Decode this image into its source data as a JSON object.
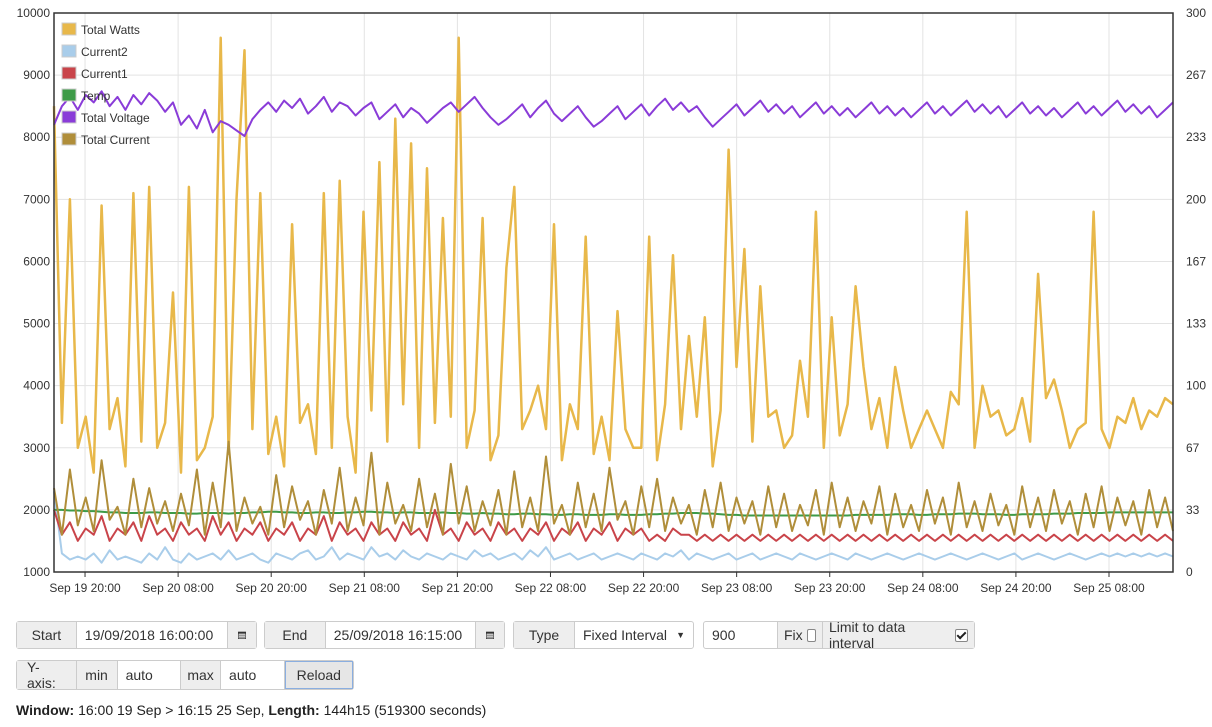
{
  "chart_data": {
    "type": "line",
    "left_axis": {
      "min": 1000,
      "max": 10000,
      "ticks": [
        "10000",
        "9000",
        "8000",
        "7000",
        "6000",
        "5000",
        "4000",
        "3000",
        "2000",
        "1000"
      ]
    },
    "right_axis": {
      "min": 0,
      "max": 300,
      "ticks": [
        "300",
        "267",
        "233",
        "200",
        "167",
        "133",
        "100",
        "67",
        "33",
        "0"
      ]
    },
    "x_ticks": [
      "Sep 19 20:00",
      "Sep 20 08:00",
      "Sep 20 20:00",
      "Sep 21 08:00",
      "Sep 21 20:00",
      "Sep 22 08:00",
      "Sep 22 20:00",
      "Sep 23 08:00",
      "Sep 23 20:00",
      "Sep 24 08:00",
      "Sep 24 20:00",
      "Sep 25 08:00"
    ],
    "x_start": "2018-09-19T16:00",
    "x_end": "2018-09-25T16:15",
    "grid": true,
    "legend_position": "top-left",
    "series": [
      {
        "name": "Total Watts",
        "color": "#e8b84a",
        "axis": "left",
        "values": [
          8500,
          3400,
          7000,
          3000,
          3500,
          2600,
          6900,
          3300,
          3800,
          2700,
          7100,
          3100,
          7200,
          3000,
          3400,
          5500,
          2600,
          7200,
          2800,
          3000,
          3500,
          9600,
          2900,
          7000,
          9400,
          3300,
          7100,
          2900,
          3500,
          2700,
          6600,
          3400,
          3700,
          2900,
          7100,
          3000,
          7300,
          3500,
          2600,
          6800,
          3600,
          7600,
          3100,
          8300,
          3700,
          7900,
          3000,
          7500,
          3400,
          6700,
          3500,
          9600,
          3000,
          3600,
          6700,
          2800,
          3200,
          5900,
          7200,
          3300,
          3600,
          4000,
          3300,
          6600,
          2800,
          3700,
          3300,
          6400,
          2900,
          3500,
          2800,
          5200,
          3300,
          3000,
          3000,
          6400,
          2800,
          3700,
          6100,
          3300,
          4800,
          3500,
          5100,
          2700,
          3600,
          7800,
          4300,
          6200,
          3100,
          5600,
          3500,
          3600,
          3000,
          3200,
          4400,
          3500,
          6800,
          3000,
          5100,
          3200,
          3700,
          5600,
          4300,
          3300,
          3800,
          3000,
          4300,
          3600,
          3000,
          3300,
          3600,
          3300,
          3000,
          3900,
          3700,
          6800,
          3000,
          4000,
          3500,
          3600,
          3200,
          3300,
          3800,
          3100,
          5800,
          3800,
          4100,
          3600,
          3000,
          3300,
          3400,
          6800,
          3300,
          3000,
          3500,
          3400,
          3800,
          3300,
          3600,
          3500,
          3800,
          3700
        ]
      },
      {
        "name": "Current2",
        "color": "#a9cdea",
        "axis": "left",
        "values": [
          2300,
          1300,
          1200,
          1250,
          1200,
          1300,
          1150,
          1350,
          1200,
          1250,
          1200,
          1150,
          1300,
          1200,
          1400,
          1200,
          1150,
          1300,
          1200,
          1250,
          1300,
          1200,
          1350,
          1200,
          1250,
          1300,
          1200,
          1150,
          1300,
          1250,
          1200,
          1300,
          1350,
          1200,
          1250,
          1400,
          1200,
          1300,
          1250,
          1200,
          1400,
          1250,
          1300,
          1200,
          1350,
          1250,
          1200,
          1300,
          1250,
          1200,
          1300,
          1250,
          1200,
          1350,
          1250,
          1300,
          1200,
          1250,
          1300,
          1200,
          1350,
          1250,
          1400,
          1200,
          1250,
          1300,
          1200,
          1250,
          1300,
          1200,
          1250,
          1300,
          1250,
          1200,
          1300,
          1250,
          1200,
          1300,
          1250,
          1350,
          1200,
          1300,
          1250,
          1200,
          1250,
          1300,
          1200,
          1250,
          1300,
          1200,
          1250,
          1300,
          1250,
          1200,
          1300,
          1250,
          1200,
          1250,
          1300,
          1250,
          1200,
          1300,
          1250,
          1200,
          1250,
          1300,
          1250,
          1200,
          1250,
          1300,
          1250,
          1200,
          1250,
          1300,
          1250,
          1200,
          1250,
          1300,
          1250,
          1200,
          1250,
          1300,
          1200,
          1250,
          1300,
          1250,
          1200,
          1250,
          1300,
          1250,
          1200,
          1250,
          1300,
          1250,
          1300,
          1250,
          1300,
          1250,
          1300,
          1250,
          1300,
          1250
        ]
      },
      {
        "name": "Current1",
        "color": "#c9444a",
        "axis": "left",
        "values": [
          2000,
          1600,
          1800,
          1500,
          1700,
          1600,
          1900,
          1500,
          1700,
          1600,
          1800,
          1500,
          1900,
          1600,
          1700,
          1500,
          1800,
          1600,
          1700,
          1500,
          1900,
          1600,
          1800,
          1500,
          1700,
          1600,
          1800,
          1500,
          1700,
          1600,
          1800,
          1500,
          1700,
          1600,
          1900,
          1500,
          1800,
          1600,
          1700,
          1500,
          1800,
          1600,
          1700,
          1500,
          1800,
          1600,
          1700,
          1500,
          2000,
          1600,
          1700,
          1500,
          1800,
          1600,
          1700,
          1500,
          1800,
          1600,
          1700,
          1500,
          1700,
          1600,
          1800,
          1500,
          1700,
          1600,
          1800,
          1500,
          1700,
          1600,
          1800,
          1500,
          1700,
          1600,
          1700,
          1500,
          1600,
          1500,
          1700,
          1600,
          1600,
          1500,
          1600,
          1500,
          1600,
          1500,
          1600,
          1500,
          1600,
          1500,
          1600,
          1500,
          1600,
          1500,
          1600,
          1500,
          1600,
          1500,
          1600,
          1500,
          1600,
          1500,
          1600,
          1500,
          1600,
          1500,
          1600,
          1500,
          1600,
          1500,
          1600,
          1500,
          1600,
          1500,
          1600,
          1500,
          1600,
          1500,
          1600,
          1500,
          1600,
          1500,
          1600,
          1500,
          1600,
          1500,
          1600,
          1500,
          1600,
          1500,
          1600,
          1500,
          1600,
          1500,
          1600,
          1500,
          1600,
          1500,
          1600,
          1500,
          1600,
          1500
        ]
      },
      {
        "name": "Temp",
        "color": "#3e9b48",
        "axis": "left",
        "values": [
          2000,
          2000,
          1990,
          1990,
          1980,
          1980,
          1970,
          1960,
          1960,
          1950,
          1950,
          1950,
          1960,
          1960,
          1950,
          1950,
          1950,
          1940,
          1940,
          1950,
          1950,
          1950,
          1940,
          1950,
          1950,
          1960,
          1960,
          1970,
          1970,
          1960,
          1960,
          1950,
          1950,
          1960,
          1960,
          1950,
          1950,
          1960,
          1960,
          1970,
          1970,
          1960,
          1960,
          1950,
          1960,
          1960,
          1950,
          1950,
          1950,
          1960,
          1950,
          1950,
          1940,
          1940,
          1950,
          1940,
          1940,
          1930,
          1930,
          1940,
          1940,
          1930,
          1930,
          1920,
          1920,
          1930,
          1930,
          1920,
          1920,
          1920,
          1930,
          1930,
          1920,
          1920,
          1920,
          1930,
          1930,
          1940,
          1940,
          1950,
          1950,
          1950,
          1940,
          1940,
          1930,
          1920,
          1920,
          1910,
          1910,
          1910,
          1910,
          1910,
          1910,
          1910,
          1910,
          1910,
          1910,
          1910,
          1910,
          1910,
          1910,
          1920,
          1920,
          1920,
          1920,
          1920,
          1930,
          1930,
          1930,
          1920,
          1920,
          1930,
          1930,
          1930,
          1940,
          1940,
          1940,
          1930,
          1930,
          1930,
          1920,
          1920,
          1930,
          1930,
          1930,
          1930,
          1940,
          1940,
          1940,
          1950,
          1950,
          1950,
          1950,
          1960,
          1960,
          1960,
          1960,
          1960,
          1960,
          1960,
          1960,
          1960
        ]
      },
      {
        "name": "Total Voltage",
        "color": "#8a3cd8",
        "axis": "right",
        "values": [
          240,
          250,
          255,
          248,
          256,
          252,
          258,
          250,
          255,
          248,
          256,
          251,
          257,
          253,
          247,
          252,
          240,
          245,
          238,
          248,
          236,
          242,
          240,
          237,
          234,
          243,
          248,
          252,
          247,
          253,
          249,
          254,
          246,
          250,
          255,
          247,
          252,
          250,
          245,
          249,
          252,
          243,
          247,
          251,
          244,
          249,
          246,
          241,
          245,
          249,
          252,
          247,
          251,
          255,
          249,
          244,
          240,
          243,
          247,
          251,
          244,
          249,
          253,
          246,
          242,
          246,
          250,
          244,
          239,
          242,
          246,
          250,
          243,
          247,
          251,
          245,
          250,
          254,
          248,
          252,
          247,
          250,
          244,
          239,
          243,
          247,
          251,
          245,
          249,
          253,
          247,
          251,
          246,
          250,
          244,
          248,
          252,
          246,
          250,
          245,
          249,
          244,
          248,
          252,
          246,
          250,
          245,
          249,
          244,
          248,
          252,
          246,
          250,
          245,
          249,
          253,
          247,
          251,
          246,
          250,
          244,
          248,
          252,
          246,
          250,
          245,
          249,
          244,
          248,
          252,
          246,
          250,
          245,
          249,
          253,
          247,
          251,
          246,
          250,
          244,
          248,
          252
        ]
      },
      {
        "name": "Total Current",
        "color": "#b08e3a",
        "axis": "right",
        "values": [
          45,
          20,
          55,
          25,
          40,
          22,
          60,
          28,
          35,
          20,
          50,
          24,
          45,
          26,
          38,
          22,
          42,
          25,
          55,
          20,
          48,
          24,
          70,
          22,
          40,
          26,
          35,
          20,
          52,
          24,
          46,
          28,
          38,
          20,
          44,
          26,
          56,
          22,
          40,
          25,
          64,
          20,
          48,
          26,
          36,
          22,
          50,
          24,
          42,
          20,
          58,
          26,
          46,
          22,
          38,
          25,
          44,
          20,
          54,
          24,
          40,
          22,
          62,
          26,
          36,
          20,
          48,
          24,
          42,
          22,
          56,
          28,
          38,
          20,
          46,
          24,
          50,
          22,
          40,
          26,
          36,
          20,
          44,
          24,
          48,
          22,
          40,
          26,
          38,
          20,
          46,
          24,
          42,
          22,
          36,
          25,
          44,
          20,
          48,
          24,
          40,
          22,
          38,
          26,
          46,
          20,
          42,
          24,
          36,
          22,
          44,
          26,
          40,
          20,
          48,
          24,
          38,
          22,
          42,
          25,
          36,
          20,
          46,
          24,
          40,
          22,
          44,
          26,
          38,
          20,
          42,
          24,
          46,
          22,
          40,
          25,
          38,
          20,
          44,
          24,
          40,
          22
        ]
      }
    ]
  },
  "controls": {
    "start_label": "Start",
    "start_value": "19/09/2018 16:00:00",
    "end_label": "End",
    "end_value": "25/09/2018 16:15:00",
    "type_label": "Type",
    "type_value": "Fixed Interval",
    "interval_value": "900",
    "fix_label": "Fix",
    "fix_checked": false,
    "limit_label": "Limit to data interval",
    "limit_checked": true,
    "yaxis_label": "Y-axis:",
    "min_label": "min",
    "min_value": "auto",
    "max_label": "max",
    "max_value": "auto",
    "reload_label": "Reload"
  },
  "status": {
    "window_label": "Window:",
    "window_value": "16:00 19 Sep > 16:15 25 Sep,",
    "length_label": "Length:",
    "length_value": "144h15 (519300 seconds)"
  }
}
